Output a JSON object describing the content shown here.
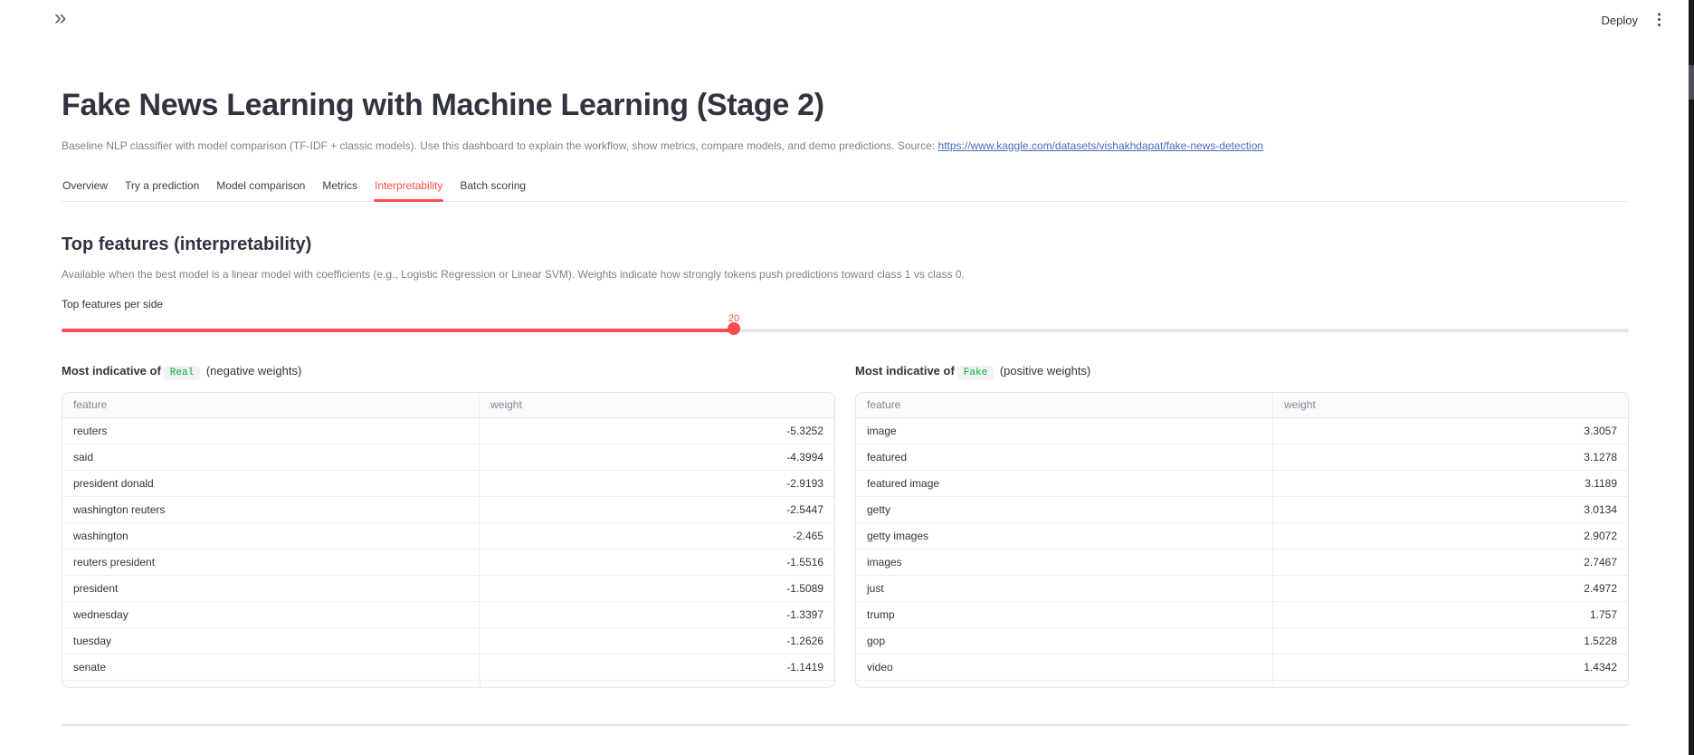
{
  "chrome": {
    "expand_sidebar_icon": "double-chevron-right",
    "expand_sidebar_glyph": "»",
    "deploy_label": "Deploy",
    "overflow_menu_icon": "kebab-menu",
    "overflow_menu_glyph": "⋮"
  },
  "header": {
    "title": "Fake News Learning with Machine Learning (Stage 2)",
    "subtitle_prefix": "Baseline NLP classifier with model comparison (TF-IDF + classic models). Use this dashboard to explain the workflow, show metrics, compare models, and demo predictions. Source: ",
    "subtitle_link": "https://www.kaggle.com/datasets/vishakhdapat/fake-news-detection"
  },
  "tabs": {
    "active_tab": "Interpretability",
    "items": [
      {
        "label": "Overview"
      },
      {
        "label": "Try a prediction"
      },
      {
        "label": "Model comparison"
      },
      {
        "label": "Metrics"
      },
      {
        "label": "Interpretability"
      },
      {
        "label": "Batch scoring"
      }
    ]
  },
  "section": {
    "heading": "Top features (interpretability)",
    "description": "Available when the best model is a linear model with coefficients (e.g., Logistic Regression or Linear SVM). Weights indicate how strongly tokens push predictions toward class 1 vs class 0.",
    "slider": {
      "label": "Top features per side",
      "value": "20",
      "percent": 42.9
    }
  },
  "tables": {
    "real": {
      "title_bold": "Most indicative of",
      "class_chip": "Real",
      "title_rest": "(negative weights)",
      "columns": [
        "feature",
        "weight"
      ],
      "rows": [
        [
          "reuters",
          "-5.3252"
        ],
        [
          "said",
          "-4.3994"
        ],
        [
          "president donald",
          "-2.9193"
        ],
        [
          "washington reuters",
          "-2.5447"
        ],
        [
          "washington",
          "-2.465"
        ],
        [
          "reuters president",
          "-1.5516"
        ],
        [
          "president",
          "-1.5089"
        ],
        [
          "wednesday",
          "-1.3397"
        ],
        [
          "tuesday",
          "-1.2626"
        ],
        [
          "senate",
          "-1.1419"
        ]
      ]
    },
    "fake": {
      "title_bold": "Most indicative of",
      "class_chip": "Fake",
      "title_rest": "(positive weights)",
      "columns": [
        "feature",
        "weight"
      ],
      "rows": [
        [
          "image",
          "3.3057"
        ],
        [
          "featured",
          "3.1278"
        ],
        [
          "featured image",
          "3.1189"
        ],
        [
          "getty",
          "3.0134"
        ],
        [
          "getty images",
          "2.9072"
        ],
        [
          "images",
          "2.7467"
        ],
        [
          "just",
          "2.4972"
        ],
        [
          "trump",
          "1.757"
        ],
        [
          "gop",
          "1.5228"
        ],
        [
          "video",
          "1.4342"
        ]
      ]
    }
  },
  "colors": {
    "accent_red": "#FF4B4B",
    "link_blue": "#4b6cc4",
    "code_green": "#09ab3b",
    "text_dark": "#31333F",
    "text_gray": "#7e818c",
    "slider_rail": "#e3e7f0",
    "table_border": "#e3e4e8"
  }
}
